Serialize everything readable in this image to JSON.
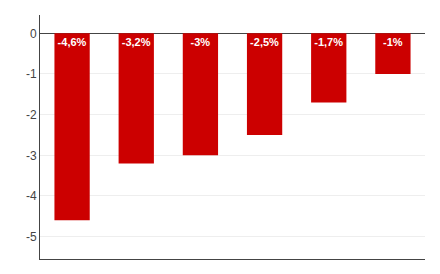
{
  "chart_data": {
    "type": "bar",
    "categories": [
      null,
      null,
      null,
      null,
      null,
      null
    ],
    "values": [
      -4.6,
      -3.2,
      -3.0,
      -2.5,
      -1.7,
      -1.0
    ],
    "value_labels": [
      "-4,6%",
      "-3,2%",
      "-3%",
      "-2,5%",
      "-1,7%",
      "-1%"
    ],
    "data_labels": true,
    "color": "#cc0000",
    "ylim": [
      -5.55,
      0.45
    ],
    "yticks": [
      0,
      -1,
      -2,
      -3,
      -4,
      -5
    ],
    "grid": true,
    "tick_labels": "y"
  }
}
